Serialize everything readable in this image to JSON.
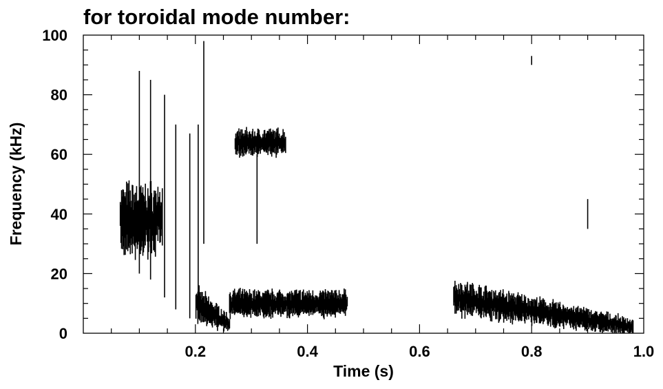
{
  "chart_data": {
    "type": "heatmap",
    "title": "for toroidal mode number:",
    "xlabel": "Time (s)",
    "ylabel": "Frequency (kHz)",
    "xlim": [
      0.0,
      1.0
    ],
    "ylim": [
      0,
      100
    ],
    "x_ticks": [
      "0.2",
      "0.4",
      "0.6",
      "0.8",
      "1.0"
    ],
    "y_ticks": [
      "0",
      "20",
      "40",
      "60",
      "80",
      "100"
    ],
    "grid": false,
    "legend": "none",
    "colors": {
      "foreground": "#000000",
      "background": "#ffffff"
    },
    "features": [
      {
        "name": "broadband-burst",
        "time_start": 0.065,
        "time_end": 0.14,
        "freq_center": 38,
        "freq_spread": 8
      },
      {
        "name": "chirp-down",
        "time_start": 0.2,
        "time_end": 0.26,
        "freq_start": 10,
        "freq_end": 3
      },
      {
        "name": "low-band-1",
        "time_start": 0.26,
        "time_end": 0.47,
        "freq_center": 10,
        "freq_spread": 3
      },
      {
        "name": "upper-band",
        "time_start": 0.27,
        "time_end": 0.36,
        "freq_center": 64,
        "freq_spread": 3
      },
      {
        "name": "low-band-2",
        "time_start": 0.66,
        "time_end": 0.98,
        "freq_start": 12,
        "freq_end": 2
      }
    ],
    "streaks": [
      {
        "t": 0.1,
        "f_low": 20,
        "f_high": 88
      },
      {
        "t": 0.12,
        "f_low": 18,
        "f_high": 85
      },
      {
        "t": 0.145,
        "f_low": 12,
        "f_high": 80
      },
      {
        "t": 0.165,
        "f_low": 8,
        "f_high": 70
      },
      {
        "t": 0.19,
        "f_low": 5,
        "f_high": 67
      },
      {
        "t": 0.205,
        "f_low": 6,
        "f_high": 70
      },
      {
        "t": 0.215,
        "f_low": 30,
        "f_high": 98
      },
      {
        "t": 0.31,
        "f_low": 30,
        "f_high": 60
      },
      {
        "t": 0.8,
        "f_low": 90,
        "f_high": 93
      },
      {
        "t": 0.9,
        "f_low": 35,
        "f_high": 45
      }
    ]
  }
}
